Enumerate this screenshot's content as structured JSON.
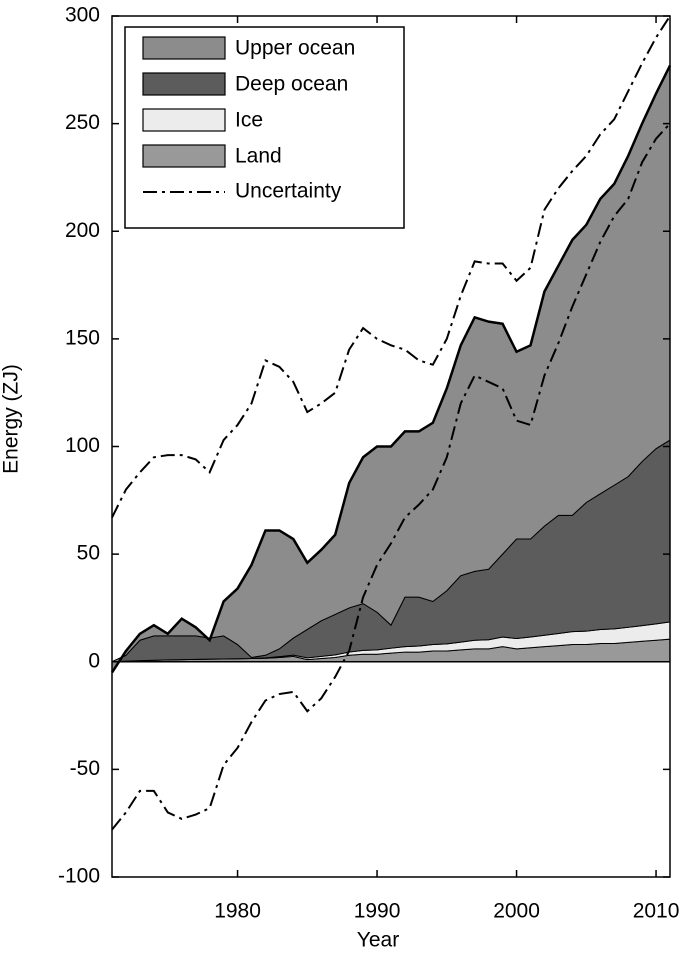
{
  "chart_data": {
    "type": "stacked_area",
    "x_label": "Year",
    "y_label": "Energy (ZJ)",
    "x": [
      1971,
      1972,
      1973,
      1974,
      1975,
      1976,
      1977,
      1978,
      1979,
      1980,
      1981,
      1982,
      1983,
      1984,
      1985,
      1986,
      1987,
      1988,
      1989,
      1990,
      1991,
      1992,
      1993,
      1994,
      1995,
      1996,
      1997,
      1998,
      1999,
      2000,
      2001,
      2002,
      2003,
      2004,
      2005,
      2006,
      2007,
      2008,
      2009,
      2010,
      2011
    ],
    "series": [
      {
        "name": "Upper ocean",
        "color": "#8c8c8c",
        "values": [
          -5,
          2,
          3,
          5,
          1,
          8,
          4,
          -1,
          16,
          26,
          43,
          58,
          55,
          46,
          31,
          33,
          37,
          58,
          68,
          77,
          83,
          77,
          77,
          83,
          94,
          107,
          118,
          115,
          107,
          87,
          90,
          109,
          116,
          128,
          129,
          137,
          140,
          149,
          157,
          165,
          174
        ]
      },
      {
        "name": "Deep ocean",
        "color": "#5c5c5c",
        "values": [
          0,
          2.7,
          9.5,
          11.3,
          11.1,
          11,
          10.9,
          9.8,
          10.7,
          6.6,
          0.5,
          1.2,
          3.6,
          7.9,
          13.2,
          16.5,
          18.8,
          20.5,
          21.7,
          17.5,
          10.7,
          23,
          22.7,
          20,
          24.7,
          30.9,
          32,
          32.8,
          38.5,
          46.2,
          45.5,
          50.7,
          54.9,
          54,
          59.8,
          63,
          66.7,
          70,
          76.2,
          81.4,
          84.5
        ]
      },
      {
        "name": "Ice",
        "color": "#ececec",
        "values": [
          0,
          0,
          0,
          0,
          0,
          0,
          0,
          0,
          0,
          0,
          0,
          0.2,
          0.4,
          0.6,
          0.8,
          1,
          1.2,
          1.5,
          1.8,
          2,
          2.3,
          2.5,
          2.8,
          3,
          3.3,
          3.6,
          4,
          4.2,
          4.5,
          4.8,
          5,
          5.3,
          5.6,
          6,
          6.2,
          6.5,
          6.8,
          7,
          7.3,
          7.6,
          8
        ]
      },
      {
        "name": "Land",
        "color": "#999999",
        "values": [
          0,
          0.3,
          0.5,
          0.7,
          0.9,
          1,
          1.1,
          1.2,
          1.3,
          1.4,
          1.5,
          1.6,
          2,
          2.5,
          1,
          1.5,
          2,
          3,
          3.5,
          3.5,
          4,
          4.5,
          4.5,
          5,
          5,
          5.5,
          6,
          6,
          7,
          6,
          6.5,
          7,
          7.5,
          8,
          8,
          8.5,
          8.5,
          9,
          9.5,
          10,
          10.5
        ]
      }
    ],
    "uncertainty": {
      "name": "Uncertainty",
      "color": "#000000",
      "upper": [
        67,
        80,
        88,
        95,
        96,
        96,
        94,
        88,
        103,
        110,
        120,
        140,
        137,
        130,
        116,
        120,
        125,
        145,
        155,
        150,
        147,
        145,
        140,
        138,
        150,
        170,
        186,
        185,
        185,
        177,
        183,
        210,
        220,
        228,
        235,
        245,
        252,
        265,
        278,
        290,
        300
      ],
      "lower": [
        -78,
        -70,
        -60,
        -60,
        -70,
        -73,
        -71,
        -68,
        -48,
        -40,
        -28,
        -18,
        -15,
        -14,
        -23,
        -17,
        -7,
        5,
        30,
        45,
        55,
        67,
        73,
        80,
        95,
        120,
        133,
        130,
        127,
        112,
        110,
        133,
        148,
        165,
        180,
        195,
        207,
        215,
        232,
        243,
        250
      ]
    },
    "xlim": [
      1971,
      2011
    ],
    "xticks": [
      1980,
      1990,
      2000,
      2010
    ],
    "ylim": [
      -100,
      300
    ],
    "yticks": [
      -100,
      -50,
      0,
      50,
      100,
      150,
      200,
      250,
      300
    ],
    "legend": "upper-left"
  }
}
